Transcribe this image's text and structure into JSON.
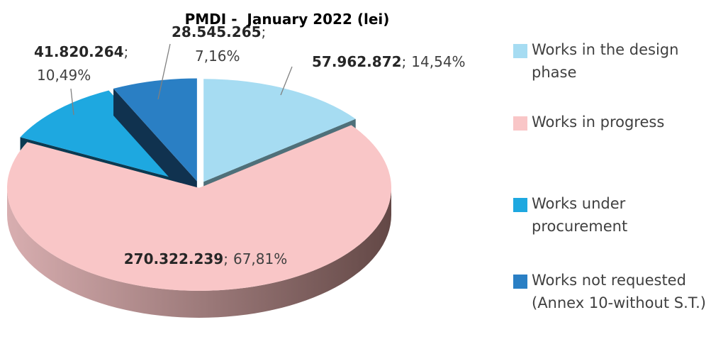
{
  "chart_data": {
    "type": "pie",
    "title": "PMDI -  January 2022 (lei)",
    "categories": [
      "Works in the design phase",
      "Works in progress",
      "Works under procurement",
      "Works not requested (Annex 10-without S.T.)"
    ],
    "values": [
      57962872,
      270322239,
      41820264,
      28545265
    ],
    "value_labels": [
      "57.962.872",
      "270.322.239",
      "41.820.264",
      "28.545.265"
    ],
    "percent_labels": [
      "14,54%",
      "67,81%",
      "10,49%",
      "7,16%"
    ],
    "separator": ";",
    "colors": [
      "#a6dcf2",
      "#f9c6c7",
      "#1ea8e0",
      "#2a7fc4"
    ],
    "legend": "right"
  }
}
